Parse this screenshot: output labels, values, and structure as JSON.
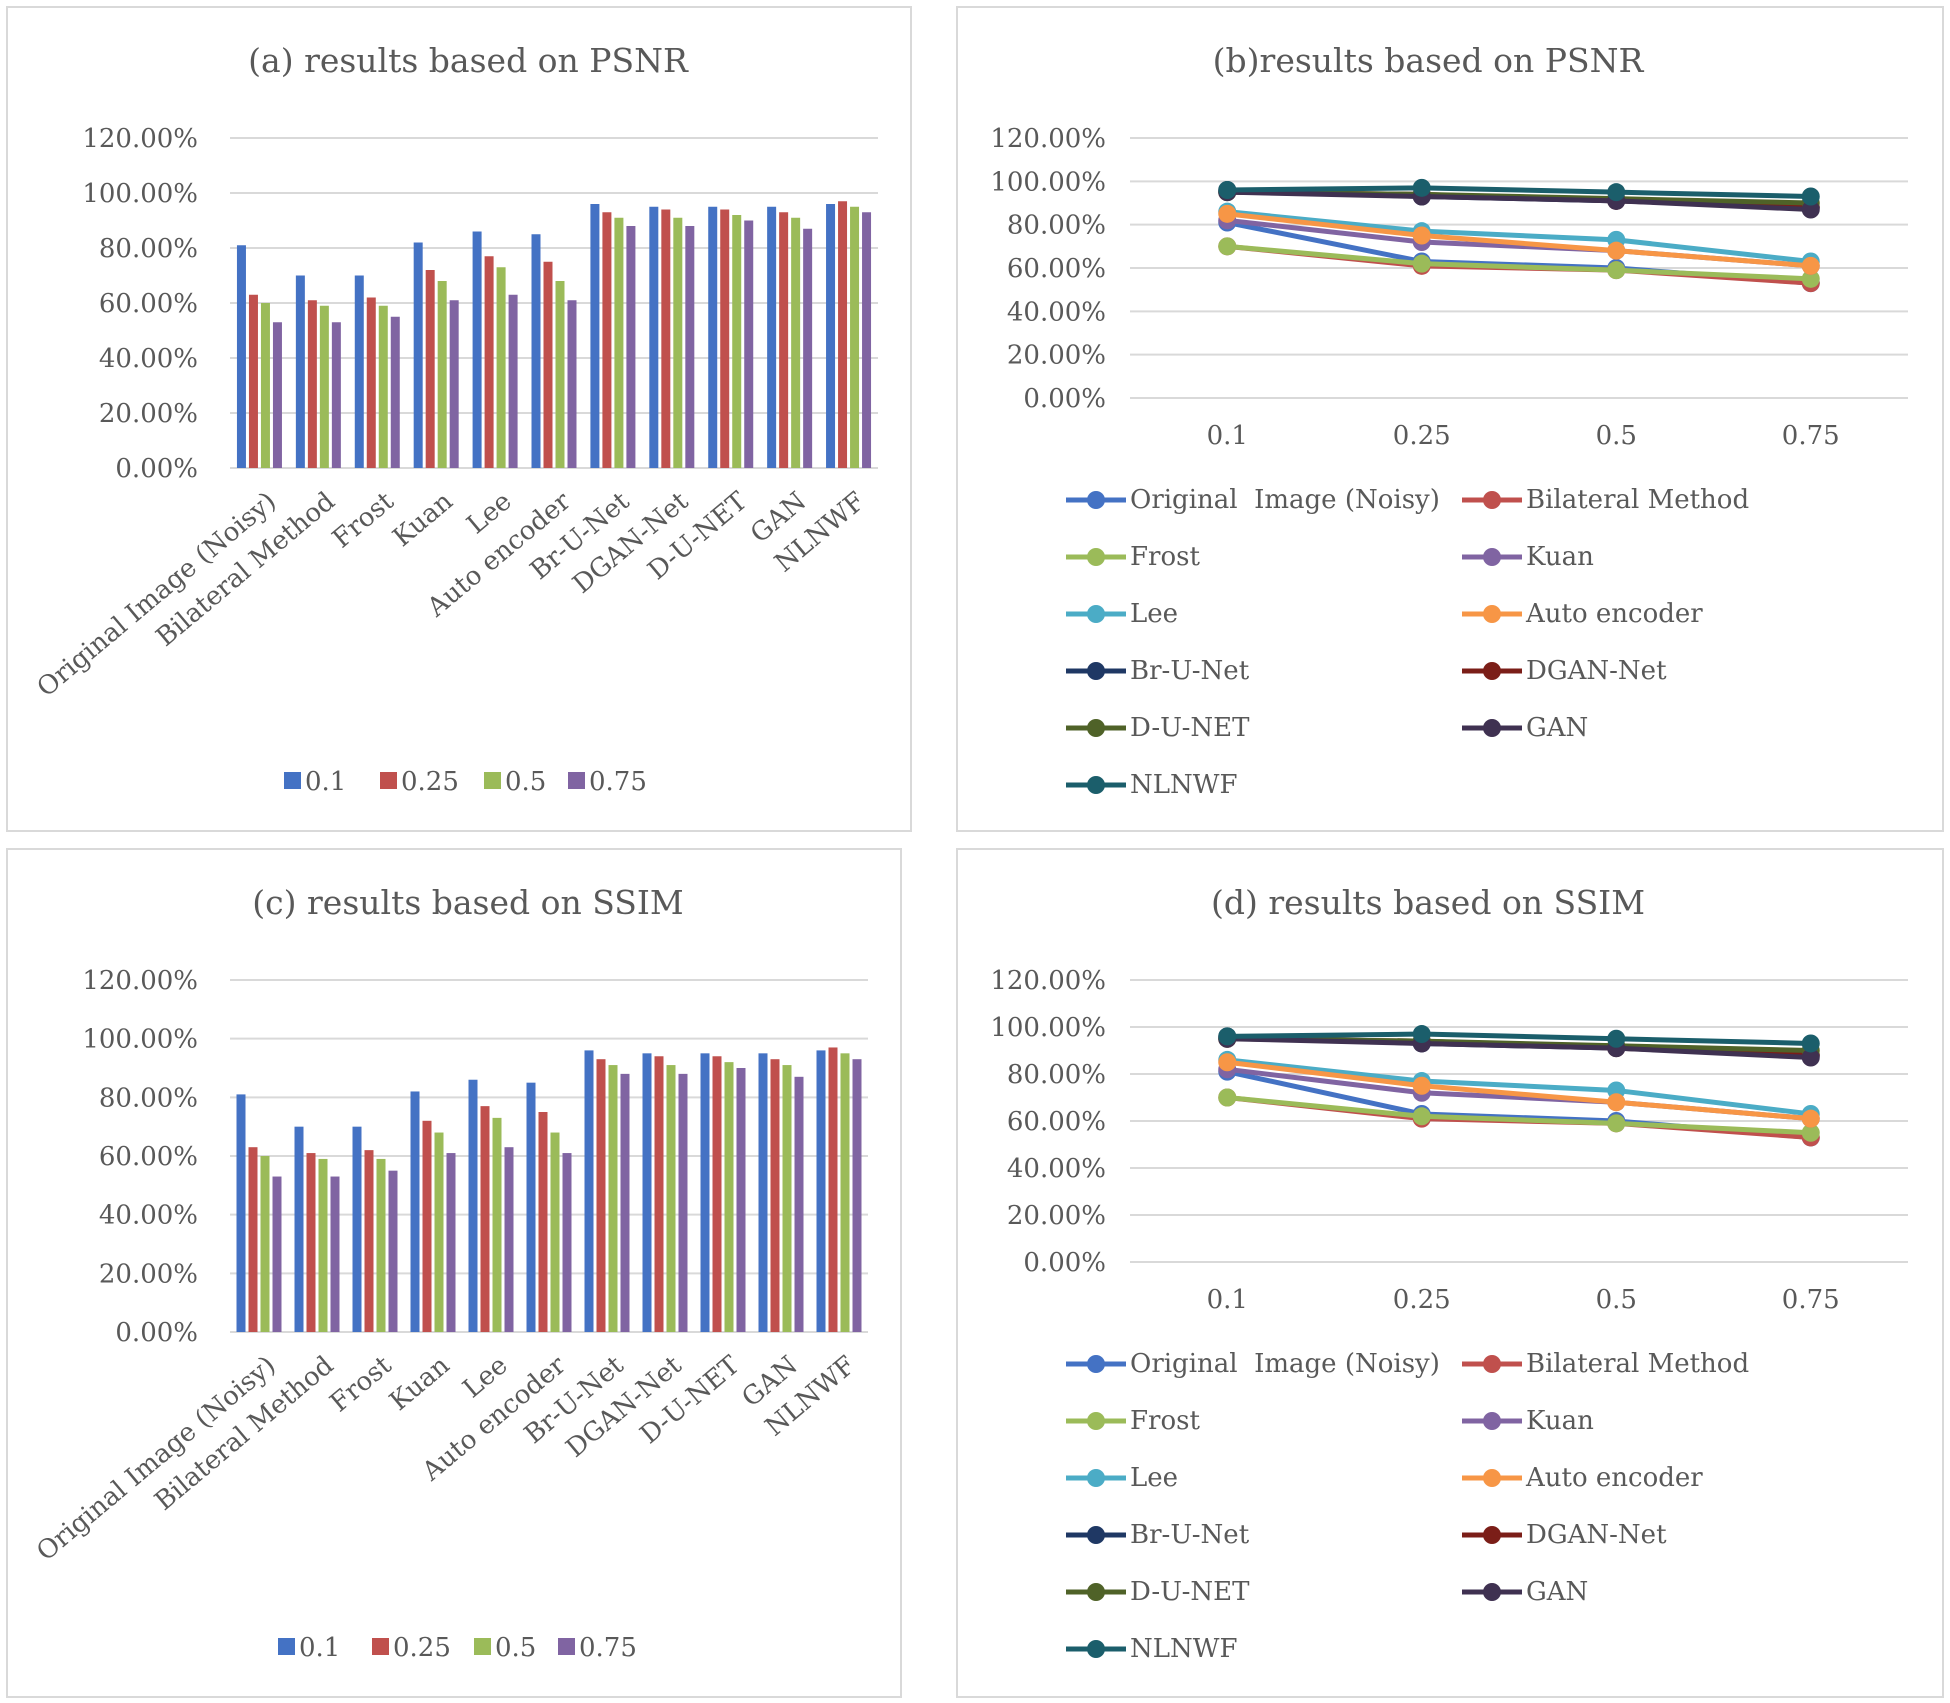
{
  "chart_data": [
    {
      "type": "bar",
      "title": "(a) results based on PSNR",
      "categories": [
        "Original  Image (Noisy)",
        "Bilateral Method",
        "Frost",
        "Kuan",
        "Lee",
        "Auto encoder",
        "Br-U-Net",
        "DGAN-Net",
        "D-U-NET",
        "GAN",
        "NLNWF"
      ],
      "series": [
        {
          "name": "0.1",
          "values": [
            0.81,
            0.7,
            0.7,
            0.82,
            0.86,
            0.85,
            0.96,
            0.95,
            0.95,
            0.95,
            0.96
          ]
        },
        {
          "name": "0.25",
          "values": [
            0.63,
            0.61,
            0.62,
            0.72,
            0.77,
            0.75,
            0.93,
            0.94,
            0.94,
            0.93,
            0.97
          ]
        },
        {
          "name": "0.5",
          "values": [
            0.6,
            0.59,
            0.59,
            0.68,
            0.73,
            0.68,
            0.91,
            0.91,
            0.92,
            0.91,
            0.95
          ]
        },
        {
          "name": "0.75",
          "values": [
            0.53,
            0.53,
            0.55,
            0.61,
            0.63,
            0.61,
            0.88,
            0.88,
            0.9,
            0.87,
            0.93
          ]
        }
      ],
      "y_ticks": [
        "0.00%",
        "20.00%",
        "40.00%",
        "60.00%",
        "80.00%",
        "100.00%",
        "120.00%"
      ],
      "ylim": [
        0,
        1.2
      ],
      "legend_position": "bottom"
    },
    {
      "type": "line",
      "title": "(b)results based on PSNR",
      "x": [
        "0.1",
        "0.25",
        "0.5",
        "0.75"
      ],
      "series": [
        {
          "name": "Original  Image (Noisy)",
          "values": [
            0.81,
            0.63,
            0.6,
            0.53
          ]
        },
        {
          "name": "Bilateral Method",
          "values": [
            0.7,
            0.61,
            0.59,
            0.53
          ]
        },
        {
          "name": "Frost",
          "values": [
            0.7,
            0.62,
            0.59,
            0.55
          ]
        },
        {
          "name": "Kuan",
          "values": [
            0.82,
            0.72,
            0.68,
            0.61
          ]
        },
        {
          "name": "Lee",
          "values": [
            0.86,
            0.77,
            0.73,
            0.63
          ]
        },
        {
          "name": "Auto encoder",
          "values": [
            0.85,
            0.75,
            0.68,
            0.61
          ]
        },
        {
          "name": "Br-U-Net",
          "values": [
            0.96,
            0.93,
            0.91,
            0.88
          ]
        },
        {
          "name": "DGAN-Net",
          "values": [
            0.95,
            0.94,
            0.91,
            0.88
          ]
        },
        {
          "name": "D-U-NET",
          "values": [
            0.95,
            0.94,
            0.92,
            0.9
          ]
        },
        {
          "name": "GAN",
          "values": [
            0.95,
            0.93,
            0.91,
            0.87
          ]
        },
        {
          "name": "NLNWF",
          "values": [
            0.96,
            0.97,
            0.95,
            0.93
          ]
        }
      ],
      "y_ticks": [
        "0.00%",
        "20.00%",
        "40.00%",
        "60.00%",
        "80.00%",
        "100.00%",
        "120.00%"
      ],
      "ylim": [
        0,
        1.2
      ],
      "legend_position": "bottom"
    },
    {
      "type": "bar",
      "title": "(c) results based on SSIM",
      "categories": [
        "Original  Image (Noisy)",
        "Bilateral Method",
        "Frost",
        "Kuan",
        "Lee",
        "Auto encoder",
        "Br-U-Net",
        "DGAN-Net",
        "D-U-NET",
        "GAN",
        "NLNWF"
      ],
      "series": [
        {
          "name": "0.1",
          "values": [
            0.81,
            0.7,
            0.7,
            0.82,
            0.86,
            0.85,
            0.96,
            0.95,
            0.95,
            0.95,
            0.96
          ]
        },
        {
          "name": "0.25",
          "values": [
            0.63,
            0.61,
            0.62,
            0.72,
            0.77,
            0.75,
            0.93,
            0.94,
            0.94,
            0.93,
            0.97
          ]
        },
        {
          "name": "0.5",
          "values": [
            0.6,
            0.59,
            0.59,
            0.68,
            0.73,
            0.68,
            0.91,
            0.91,
            0.92,
            0.91,
            0.95
          ]
        },
        {
          "name": "0.75",
          "values": [
            0.53,
            0.53,
            0.55,
            0.61,
            0.63,
            0.61,
            0.88,
            0.88,
            0.9,
            0.87,
            0.93
          ]
        }
      ],
      "y_ticks": [
        "0.00%",
        "20.00%",
        "40.00%",
        "60.00%",
        "80.00%",
        "100.00%",
        "120.00%"
      ],
      "ylim": [
        0,
        1.2
      ],
      "legend_position": "bottom"
    },
    {
      "type": "line",
      "title": "(d) results based on SSIM",
      "x": [
        "0.1",
        "0.25",
        "0.5",
        "0.75"
      ],
      "series": [
        {
          "name": "Original  Image (Noisy)",
          "values": [
            0.81,
            0.63,
            0.6,
            0.53
          ]
        },
        {
          "name": "Bilateral Method",
          "values": [
            0.7,
            0.61,
            0.59,
            0.53
          ]
        },
        {
          "name": "Frost",
          "values": [
            0.7,
            0.62,
            0.59,
            0.55
          ]
        },
        {
          "name": "Kuan",
          "values": [
            0.82,
            0.72,
            0.68,
            0.61
          ]
        },
        {
          "name": "Lee",
          "values": [
            0.86,
            0.77,
            0.73,
            0.63
          ]
        },
        {
          "name": "Auto encoder",
          "values": [
            0.85,
            0.75,
            0.68,
            0.61
          ]
        },
        {
          "name": "Br-U-Net",
          "values": [
            0.96,
            0.93,
            0.91,
            0.88
          ]
        },
        {
          "name": "DGAN-Net",
          "values": [
            0.95,
            0.94,
            0.91,
            0.88
          ]
        },
        {
          "name": "D-U-NET",
          "values": [
            0.95,
            0.94,
            0.92,
            0.9
          ]
        },
        {
          "name": "GAN",
          "values": [
            0.95,
            0.93,
            0.91,
            0.87
          ]
        },
        {
          "name": "NLNWF",
          "values": [
            0.96,
            0.97,
            0.95,
            0.93
          ]
        }
      ],
      "y_ticks": [
        "0.00%",
        "20.00%",
        "40.00%",
        "60.00%",
        "80.00%",
        "100.00%",
        "120.00%"
      ],
      "ylim": [
        0,
        1.2
      ],
      "legend_position": "bottom"
    }
  ],
  "colors": {
    "bar_series": [
      "#4472c4",
      "#c0504d",
      "#9bbb59",
      "#8064a2"
    ],
    "line_series": [
      "#4472c4",
      "#c0504d",
      "#9bbb59",
      "#8064a2",
      "#4bacc6",
      "#f79646",
      "#1f3864",
      "#7b1e18",
      "#4f6228",
      "#3f3151",
      "#1b5e6b"
    ],
    "gridline": "#d9d9d9",
    "text": "#595959"
  }
}
